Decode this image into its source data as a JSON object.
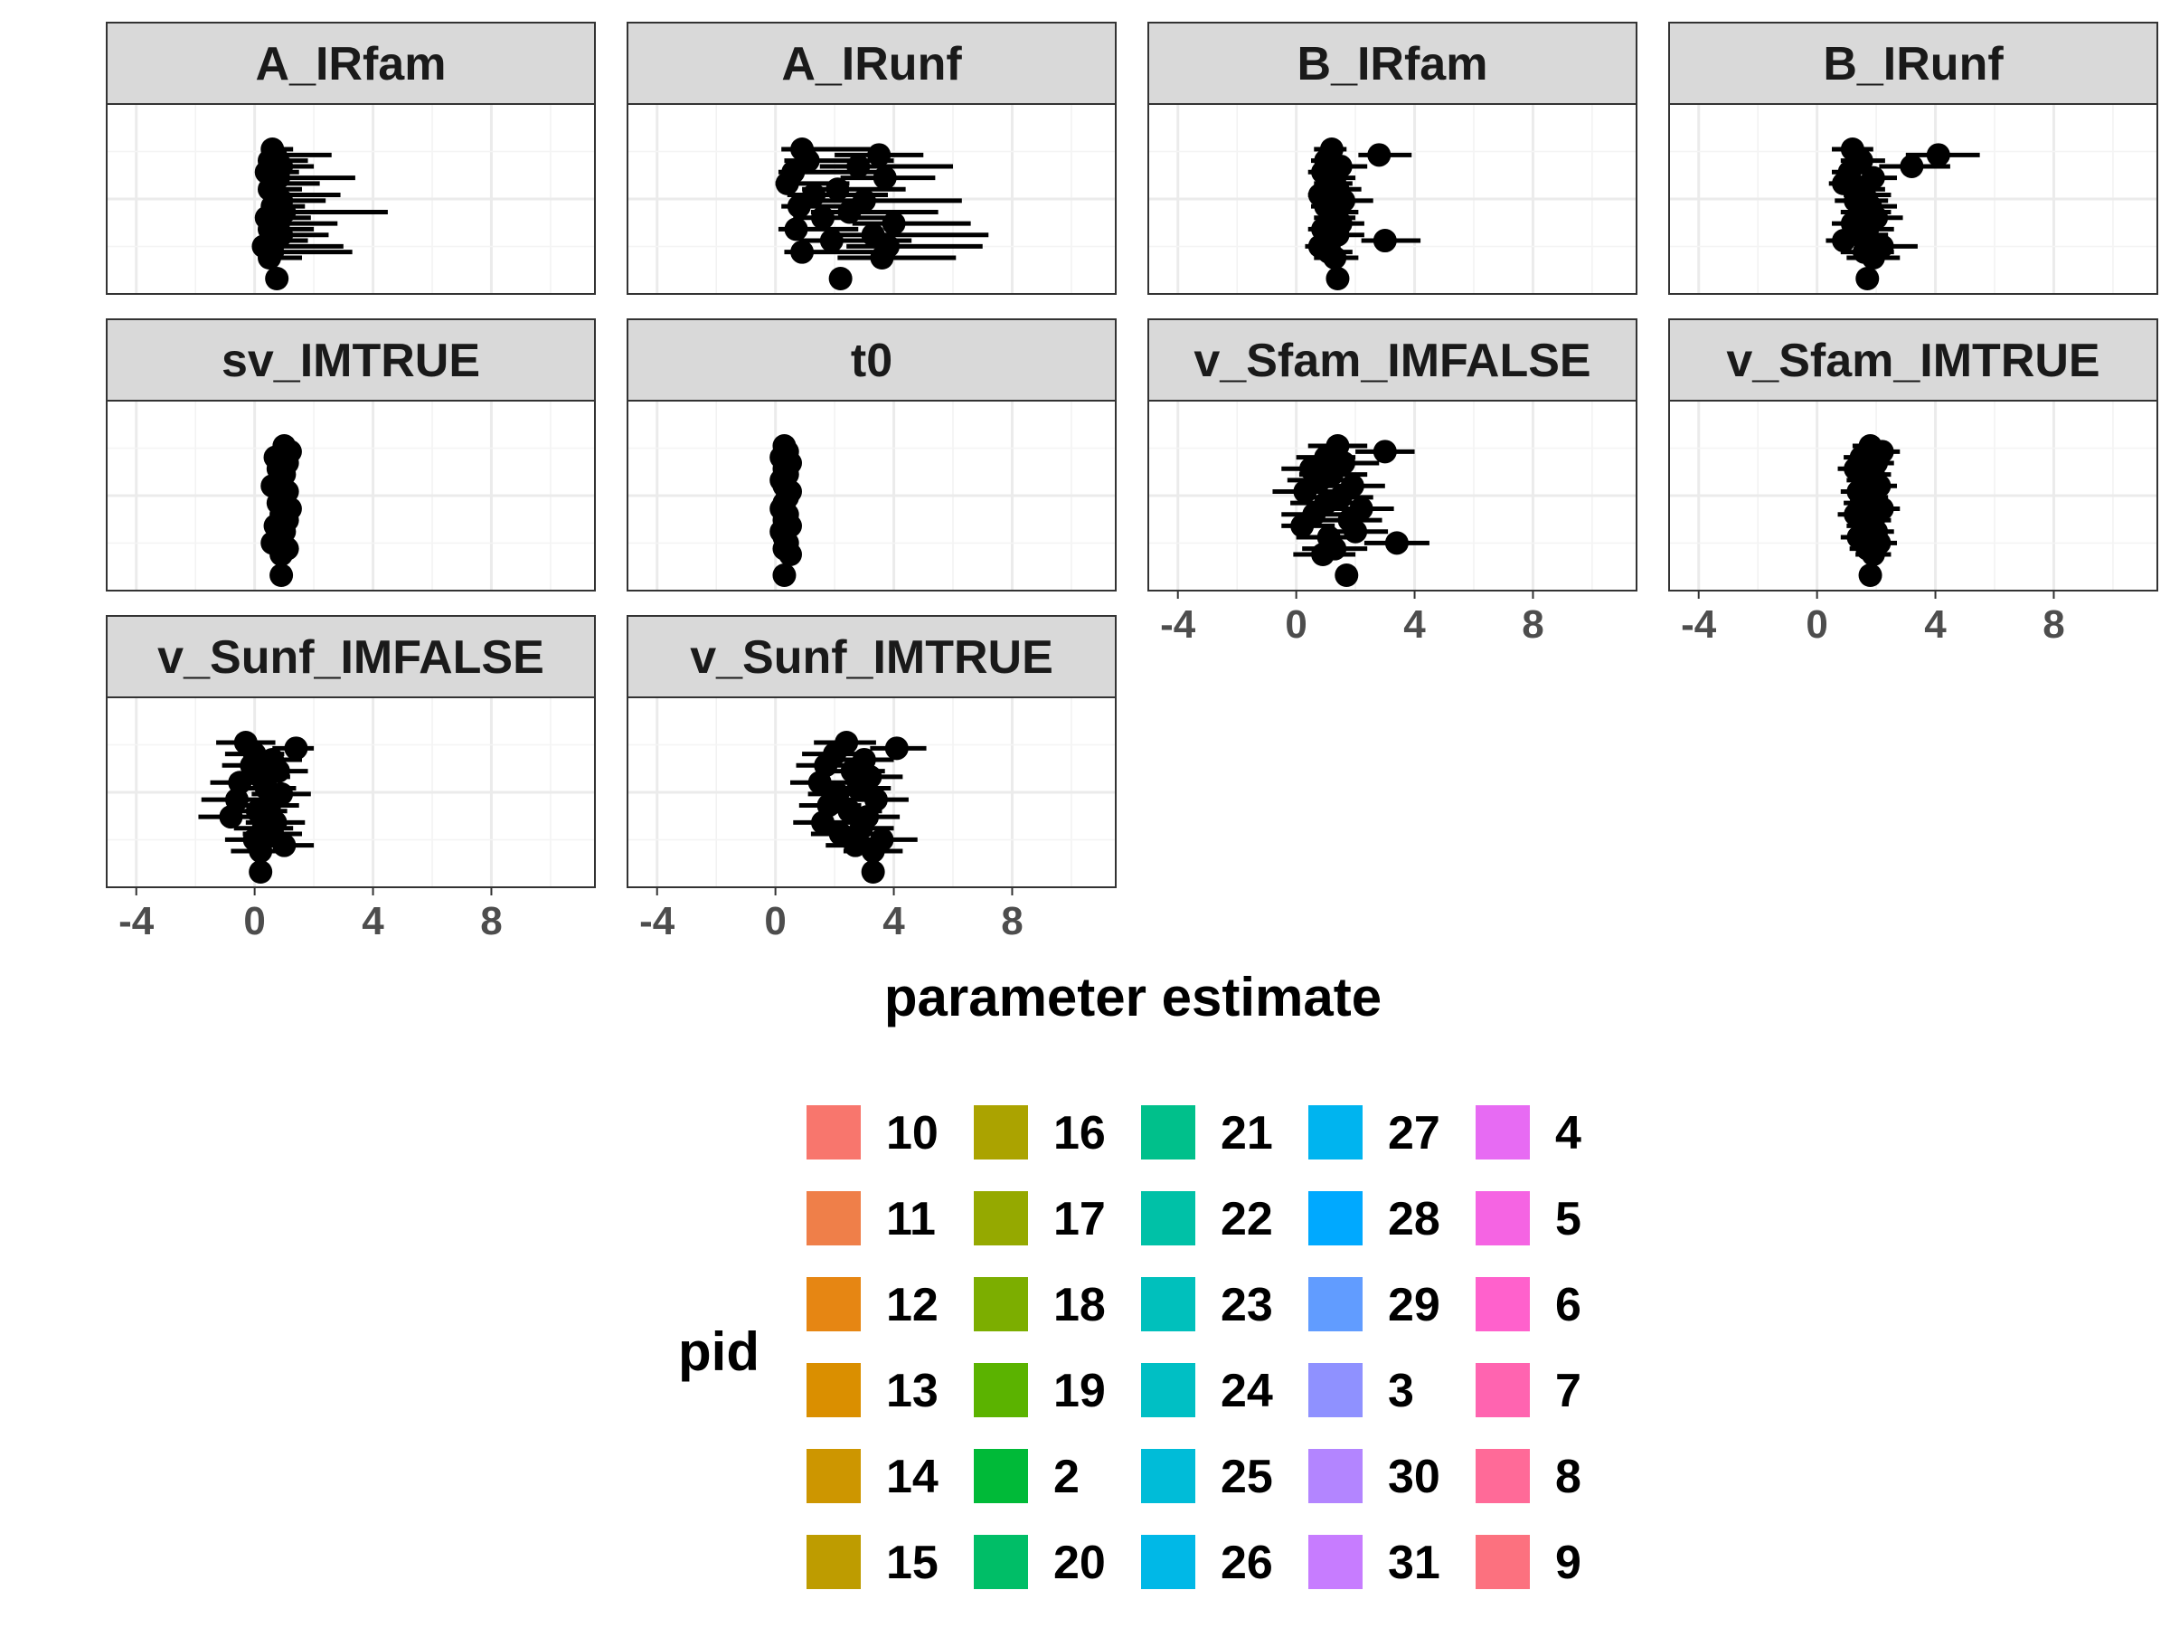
{
  "chart_data": {
    "type": "scatter",
    "subtype": "faceted point-range plot (point estimates with horizontal error bars)",
    "xlabel": "parameter estimate",
    "xlim": [
      -5,
      11.5
    ],
    "x_ticks": [
      -4,
      0,
      4,
      8
    ],
    "x_tick_labels": [
      "-4",
      "0",
      "4",
      "8"
    ],
    "grid": true,
    "facet_ncol": 4,
    "marker_color": "#000000",
    "legend": {
      "title": "pid",
      "placement": "bottom",
      "columns": 5,
      "entries": [
        {
          "label": "10",
          "color": "#F8766D"
        },
        {
          "label": "11",
          "color": "#EF7F49"
        },
        {
          "label": "12",
          "color": "#E68613"
        },
        {
          "label": "13",
          "color": "#DA8F00"
        },
        {
          "label": "14",
          "color": "#CD9600"
        },
        {
          "label": "15",
          "color": "#BE9C00"
        },
        {
          "label": "16",
          "color": "#ABA300"
        },
        {
          "label": "17",
          "color": "#95A900"
        },
        {
          "label": "18",
          "color": "#7CAE00"
        },
        {
          "label": "19",
          "color": "#5BB300"
        },
        {
          "label": "2",
          "color": "#00BA38"
        },
        {
          "label": "20",
          "color": "#00BE67"
        },
        {
          "label": "21",
          "color": "#00C08B"
        },
        {
          "label": "22",
          "color": "#00C1A7"
        },
        {
          "label": "23",
          "color": "#00C0BC"
        },
        {
          "label": "24",
          "color": "#00BFC4"
        },
        {
          "label": "25",
          "color": "#00BCD8"
        },
        {
          "label": "26",
          "color": "#00B8E7"
        },
        {
          "label": "27",
          "color": "#00B4EF"
        },
        {
          "label": "28",
          "color": "#00A9FF"
        },
        {
          "label": "29",
          "color": "#619CFF"
        },
        {
          "label": "3",
          "color": "#8F91FF"
        },
        {
          "label": "30",
          "color": "#B385FF"
        },
        {
          "label": "31",
          "color": "#C77CFF"
        },
        {
          "label": "4",
          "color": "#E76BF3"
        },
        {
          "label": "5",
          "color": "#F564E3"
        },
        {
          "label": "6",
          "color": "#FF61CC"
        },
        {
          "label": "7",
          "color": "#FF64B0"
        },
        {
          "label": "8",
          "color": "#FF6A98"
        },
        {
          "label": "9",
          "color": "#FC717F"
        }
      ]
    },
    "facets": [
      {
        "name": "A_IRfam",
        "points": [
          [
            0.6,
            0.4,
            1.3
          ],
          [
            0.7,
            0.3,
            2.6
          ],
          [
            0.5,
            0.2,
            1.8
          ],
          [
            0.9,
            0.4,
            2.0
          ],
          [
            0.4,
            0.1,
            1.5
          ],
          [
            0.8,
            0.3,
            3.4
          ],
          [
            0.6,
            0.2,
            2.2
          ],
          [
            0.5,
            0.2,
            1.6
          ],
          [
            0.7,
            0.2,
            2.9
          ],
          [
            0.9,
            0.3,
            2.4
          ],
          [
            0.6,
            0.3,
            1.7
          ],
          [
            1.0,
            0.4,
            4.5
          ],
          [
            0.4,
            0.1,
            1.9
          ],
          [
            0.8,
            0.3,
            2.8
          ],
          [
            0.5,
            0.2,
            2.0
          ],
          [
            0.9,
            0.4,
            2.5
          ],
          [
            0.7,
            0.3,
            1.8
          ],
          [
            0.3,
            0.1,
            3.0
          ],
          [
            0.6,
            0.2,
            3.3
          ],
          [
            0.5,
            0.2,
            1.6
          ]
        ],
        "summary": [
          0.75,
          0.7,
          0.8
        ]
      },
      {
        "name": "A_IRunf",
        "points": [
          [
            0.9,
            0.2,
            3.2
          ],
          [
            3.5,
            2.0,
            5.0
          ],
          [
            1.1,
            0.3,
            4.0
          ],
          [
            2.8,
            1.5,
            6.0
          ],
          [
            0.6,
            0.1,
            3.5
          ],
          [
            3.7,
            2.2,
            5.4
          ],
          [
            0.4,
            0.0,
            2.5
          ],
          [
            2.1,
            0.9,
            4.4
          ],
          [
            1.3,
            0.4,
            3.8
          ],
          [
            3.0,
            1.6,
            6.3
          ],
          [
            0.8,
            0.2,
            3.0
          ],
          [
            2.5,
            1.2,
            5.5
          ],
          [
            1.6,
            0.6,
            4.2
          ],
          [
            4.0,
            2.6,
            6.6
          ],
          [
            0.7,
            0.1,
            2.8
          ],
          [
            3.3,
            2.0,
            7.2
          ],
          [
            1.9,
            0.8,
            4.6
          ],
          [
            3.8,
            2.4,
            7.0
          ],
          [
            0.9,
            0.3,
            3.3
          ],
          [
            3.6,
            2.1,
            6.1
          ]
        ],
        "summary": [
          2.2,
          2.1,
          2.3
        ]
      },
      {
        "name": "B_IRfam",
        "points": [
          [
            1.2,
            0.6,
            1.7
          ],
          [
            2.8,
            2.1,
            3.9
          ],
          [
            1.0,
            0.5,
            1.6
          ],
          [
            1.5,
            0.9,
            2.4
          ],
          [
            0.9,
            0.4,
            1.5
          ],
          [
            1.3,
            0.7,
            2.0
          ],
          [
            1.1,
            0.6,
            1.9
          ],
          [
            1.4,
            0.8,
            2.2
          ],
          [
            0.8,
            0.4,
            1.4
          ],
          [
            1.6,
            1.0,
            2.6
          ],
          [
            1.0,
            0.5,
            1.8
          ],
          [
            1.3,
            0.7,
            2.1
          ],
          [
            1.2,
            0.6,
            2.0
          ],
          [
            1.5,
            0.8,
            2.3
          ],
          [
            0.9,
            0.4,
            1.6
          ],
          [
            1.4,
            0.7,
            2.3
          ],
          [
            3.0,
            2.2,
            4.2
          ],
          [
            0.8,
            0.3,
            1.5
          ],
          [
            1.1,
            0.5,
            1.9
          ],
          [
            1.3,
            0.6,
            2.1
          ]
        ],
        "summary": [
          1.4,
          1.35,
          1.45
        ]
      },
      {
        "name": "B_IRunf",
        "points": [
          [
            1.2,
            0.5,
            1.9
          ],
          [
            4.1,
            3.0,
            5.5
          ],
          [
            1.5,
            0.8,
            2.3
          ],
          [
            3.2,
            2.1,
            4.5
          ],
          [
            1.1,
            0.5,
            1.8
          ],
          [
            1.9,
            1.2,
            2.7
          ],
          [
            0.9,
            0.4,
            1.6
          ],
          [
            1.4,
            0.7,
            2.3
          ],
          [
            1.6,
            0.9,
            2.5
          ],
          [
            1.3,
            0.6,
            2.4
          ],
          [
            1.8,
            1.0,
            2.7
          ],
          [
            1.5,
            0.8,
            2.5
          ],
          [
            2.0,
            1.2,
            2.9
          ],
          [
            1.2,
            0.5,
            2.1
          ],
          [
            1.7,
            0.9,
            2.6
          ],
          [
            1.4,
            0.7,
            2.4
          ],
          [
            0.9,
            0.3,
            1.9
          ],
          [
            2.2,
            1.3,
            3.4
          ],
          [
            1.6,
            0.8,
            2.6
          ],
          [
            1.9,
            1.0,
            2.8
          ]
        ],
        "summary": [
          1.7,
          1.65,
          1.75
        ]
      },
      {
        "name": "sv_IMTRUE",
        "points": [
          [
            1.0,
            0.95,
            1.05
          ],
          [
            1.2,
            1.15,
            1.25
          ],
          [
            0.7,
            0.65,
            0.75
          ],
          [
            1.1,
            1.05,
            1.15
          ],
          [
            0.8,
            0.75,
            0.85
          ],
          [
            1.0,
            0.95,
            1.05
          ],
          [
            0.9,
            0.85,
            0.95
          ],
          [
            0.6,
            0.55,
            0.65
          ],
          [
            1.1,
            1.05,
            1.15
          ],
          [
            1.0,
            0.95,
            1.05
          ],
          [
            0.8,
            0.75,
            0.85
          ],
          [
            1.2,
            1.15,
            1.25
          ],
          [
            0.9,
            0.85,
            0.95
          ],
          [
            1.1,
            1.05,
            1.15
          ],
          [
            0.7,
            0.65,
            0.75
          ],
          [
            1.0,
            0.95,
            1.05
          ],
          [
            0.8,
            0.75,
            0.85
          ],
          [
            0.6,
            0.55,
            0.65
          ],
          [
            1.1,
            1.05,
            1.15
          ],
          [
            0.9,
            0.85,
            0.95
          ]
        ],
        "summary": [
          0.9,
          0.85,
          0.95
        ]
      },
      {
        "name": "t0",
        "points": [
          [
            0.3,
            0.25,
            0.35
          ],
          [
            0.4,
            0.35,
            0.45
          ],
          [
            0.2,
            0.15,
            0.25
          ],
          [
            0.5,
            0.45,
            0.55
          ],
          [
            0.3,
            0.25,
            0.35
          ],
          [
            0.4,
            0.35,
            0.45
          ],
          [
            0.2,
            0.15,
            0.25
          ],
          [
            0.3,
            0.25,
            0.35
          ],
          [
            0.5,
            0.45,
            0.55
          ],
          [
            0.4,
            0.35,
            0.45
          ],
          [
            0.3,
            0.25,
            0.35
          ],
          [
            0.2,
            0.15,
            0.25
          ],
          [
            0.4,
            0.35,
            0.45
          ],
          [
            0.3,
            0.25,
            0.35
          ],
          [
            0.5,
            0.45,
            0.55
          ],
          [
            0.2,
            0.15,
            0.25
          ],
          [
            0.3,
            0.25,
            0.35
          ],
          [
            0.4,
            0.35,
            0.45
          ],
          [
            0.3,
            0.25,
            0.35
          ],
          [
            0.5,
            0.45,
            0.55
          ]
        ],
        "summary": [
          0.3,
          0.28,
          0.32
        ]
      },
      {
        "name": "v_Sfam_IMFALSE",
        "points": [
          [
            1.4,
            0.4,
            2.4
          ],
          [
            3.0,
            2.0,
            4.0
          ],
          [
            1.0,
            0.0,
            2.0
          ],
          [
            1.6,
            0.5,
            2.8
          ],
          [
            0.5,
            -0.5,
            1.5
          ],
          [
            1.2,
            0.1,
            2.4
          ],
          [
            0.8,
            -0.3,
            1.9
          ],
          [
            1.9,
            0.8,
            3.0
          ],
          [
            0.3,
            -0.8,
            1.4
          ],
          [
            1.5,
            0.4,
            2.6
          ],
          [
            1.0,
            -0.2,
            2.2
          ],
          [
            2.2,
            1.1,
            3.3
          ],
          [
            0.6,
            -0.5,
            1.7
          ],
          [
            1.8,
            0.7,
            2.9
          ],
          [
            0.2,
            -0.5,
            1.3
          ],
          [
            2.0,
            0.9,
            3.1
          ],
          [
            1.1,
            0.0,
            2.2
          ],
          [
            3.4,
            2.3,
            4.5
          ],
          [
            1.3,
            0.2,
            2.4
          ],
          [
            0.9,
            -0.1,
            2.0
          ]
        ],
        "summary": [
          1.7,
          1.6,
          1.8
        ]
      },
      {
        "name": "v_Sfam_IMTRUE",
        "points": [
          [
            1.8,
            1.2,
            2.4
          ],
          [
            2.2,
            1.6,
            2.8
          ],
          [
            1.5,
            0.9,
            2.1
          ],
          [
            2.0,
            1.4,
            2.6
          ],
          [
            1.3,
            0.7,
            1.9
          ],
          [
            1.9,
            1.3,
            2.5
          ],
          [
            1.6,
            1.0,
            2.2
          ],
          [
            2.1,
            1.5,
            2.7
          ],
          [
            1.4,
            0.8,
            2.0
          ],
          [
            1.8,
            1.2,
            2.4
          ],
          [
            1.5,
            0.9,
            2.1
          ],
          [
            2.2,
            1.6,
            2.8
          ],
          [
            1.3,
            0.7,
            1.9
          ],
          [
            1.9,
            1.3,
            2.5
          ],
          [
            1.6,
            1.0,
            2.2
          ],
          [
            2.0,
            1.4,
            2.6
          ],
          [
            1.4,
            0.8,
            2.0
          ],
          [
            2.1,
            1.5,
            2.7
          ],
          [
            1.7,
            1.1,
            2.3
          ],
          [
            1.9,
            1.3,
            2.5
          ]
        ],
        "summary": [
          1.8,
          1.75,
          1.85
        ]
      },
      {
        "name": "v_Sunf_IMFALSE",
        "points": [
          [
            -0.3,
            -1.3,
            0.7
          ],
          [
            1.4,
            0.6,
            2.0
          ],
          [
            0.0,
            -1.0,
            1.0
          ],
          [
            0.6,
            -0.4,
            1.6
          ],
          [
            -0.1,
            -1.1,
            0.9
          ],
          [
            0.8,
            -0.2,
            1.8
          ],
          [
            0.2,
            -0.8,
            1.2
          ],
          [
            -0.5,
            -1.5,
            0.5
          ],
          [
            0.4,
            -0.6,
            1.4
          ],
          [
            0.9,
            -0.1,
            1.9
          ],
          [
            -0.6,
            -1.8,
            0.4
          ],
          [
            0.5,
            -0.5,
            1.5
          ],
          [
            0.1,
            -0.9,
            1.1
          ],
          [
            -0.8,
            -1.9,
            0.2
          ],
          [
            0.7,
            -0.3,
            1.7
          ],
          [
            0.3,
            -0.7,
            1.3
          ],
          [
            0.6,
            -0.4,
            1.6
          ],
          [
            0.0,
            -1.0,
            1.0
          ],
          [
            1.0,
            0.0,
            2.0
          ],
          [
            0.2,
            -0.8,
            1.2
          ]
        ],
        "summary": [
          0.2,
          0.1,
          0.3
        ]
      },
      {
        "name": "v_Sunf_IMTRUE",
        "points": [
          [
            2.4,
            1.3,
            3.4
          ],
          [
            4.1,
            3.2,
            5.1
          ],
          [
            2.0,
            0.9,
            3.0
          ],
          [
            3.0,
            2.0,
            4.0
          ],
          [
            1.7,
            0.7,
            2.8
          ],
          [
            2.6,
            1.6,
            3.7
          ],
          [
            3.2,
            2.3,
            4.3
          ],
          [
            1.5,
            0.5,
            2.5
          ],
          [
            2.8,
            1.8,
            3.9
          ],
          [
            2.1,
            1.1,
            3.1
          ],
          [
            3.4,
            2.4,
            4.5
          ],
          [
            1.8,
            0.8,
            2.9
          ],
          [
            2.5,
            1.5,
            3.6
          ],
          [
            3.1,
            2.2,
            4.2
          ],
          [
            1.6,
            0.6,
            2.6
          ],
          [
            2.9,
            1.9,
            4.0
          ],
          [
            2.2,
            1.2,
            3.3
          ],
          [
            3.6,
            2.6,
            4.8
          ],
          [
            2.7,
            1.7,
            3.8
          ],
          [
            3.3,
            2.3,
            4.3
          ]
        ],
        "summary": [
          3.3,
          3.2,
          3.4
        ]
      }
    ]
  }
}
